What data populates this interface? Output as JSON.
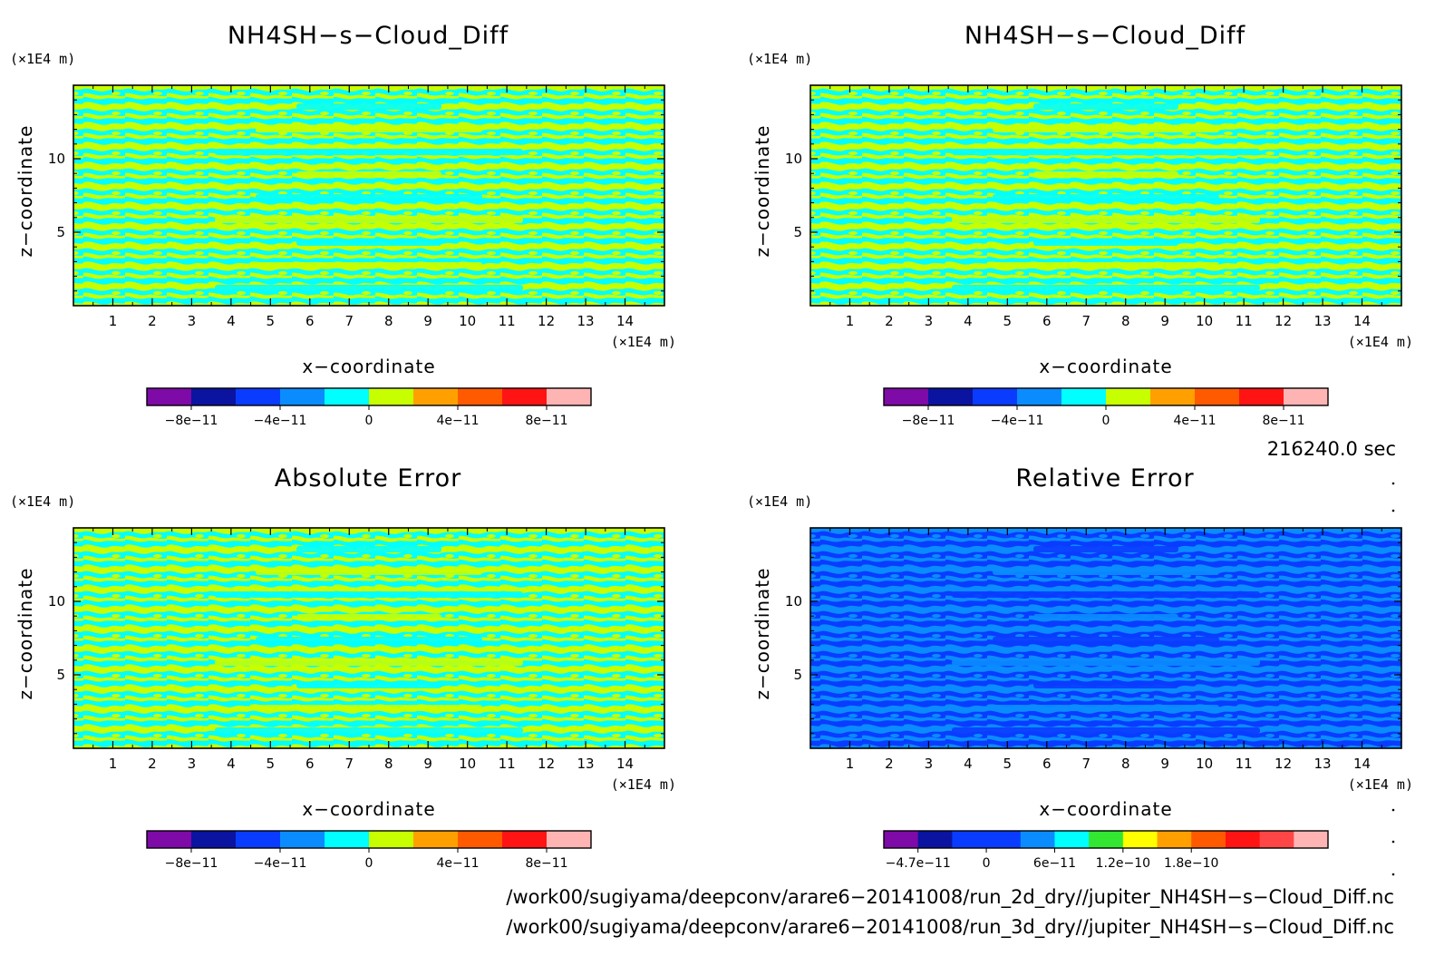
{
  "chart_data": [
    {
      "type": "heatmap",
      "title": "NH4SH−s−Cloud_Diff",
      "xlabel": "x−coordinate",
      "ylabel": "z−coordinate",
      "x_unit": "(×1E4 m)",
      "y_unit": "(×1E4 m)",
      "xlim": [
        0,
        15
      ],
      "ylim": [
        0,
        15
      ],
      "x_ticks": [
        "1",
        "2",
        "3",
        "4",
        "5",
        "6",
        "7",
        "8",
        "9",
        "10",
        "11",
        "12",
        "13",
        "14"
      ],
      "y_ticks": [
        "5",
        "10"
      ],
      "colorbar": {
        "colors": [
          "#7e0aa8",
          "#0a14a0",
          "#0a3cff",
          "#0a8cff",
          "#00ffff",
          "#c8ff00",
          "#ffa000",
          "#ff5a00",
          "#ff1414",
          "#ffb4b4"
        ],
        "labels": [
          "−8e−11",
          "−4e−11",
          "0",
          "4e−11",
          "8e−11"
        ]
      },
      "field_colors": [
        "#00ffff",
        "#c8ff00"
      ]
    },
    {
      "type": "heatmap",
      "title": "NH4SH−s−Cloud_Diff",
      "xlabel": "x−coordinate",
      "ylabel": "z−coordinate",
      "x_unit": "(×1E4 m)",
      "y_unit": "(×1E4 m)",
      "xlim": [
        0,
        15
      ],
      "ylim": [
        0,
        15
      ],
      "x_ticks": [
        "1",
        "2",
        "3",
        "4",
        "5",
        "6",
        "7",
        "8",
        "9",
        "10",
        "11",
        "12",
        "13",
        "14"
      ],
      "y_ticks": [
        "5",
        "10"
      ],
      "colorbar": {
        "colors": [
          "#7e0aa8",
          "#0a14a0",
          "#0a3cff",
          "#0a8cff",
          "#00ffff",
          "#c8ff00",
          "#ffa000",
          "#ff5a00",
          "#ff1414",
          "#ffb4b4"
        ],
        "labels": [
          "−8e−11",
          "−4e−11",
          "0",
          "4e−11",
          "8e−11"
        ]
      },
      "field_colors": [
        "#00ffff",
        "#c8ff00"
      ]
    },
    {
      "type": "heatmap",
      "title": "Absolute Error",
      "xlabel": "x−coordinate",
      "ylabel": "z−coordinate",
      "x_unit": "(×1E4 m)",
      "y_unit": "(×1E4 m)",
      "xlim": [
        0,
        15
      ],
      "ylim": [
        0,
        15
      ],
      "x_ticks": [
        "1",
        "2",
        "3",
        "4",
        "5",
        "6",
        "7",
        "8",
        "9",
        "10",
        "11",
        "12",
        "13",
        "14"
      ],
      "y_ticks": [
        "5",
        "10"
      ],
      "colorbar": {
        "colors": [
          "#7e0aa8",
          "#0a14a0",
          "#0a3cff",
          "#0a8cff",
          "#00ffff",
          "#c8ff00",
          "#ffa000",
          "#ff5a00",
          "#ff1414",
          "#ffb4b4"
        ],
        "labels": [
          "−8e−11",
          "−4e−11",
          "0",
          "4e−11",
          "8e−11"
        ]
      },
      "field_colors": [
        "#00ffff",
        "#c8ff00"
      ]
    },
    {
      "type": "heatmap",
      "title": "Relative Error",
      "xlabel": "x−coordinate",
      "ylabel": "z−coordinate",
      "x_unit": "(×1E4 m)",
      "y_unit": "(×1E4 m)",
      "xlim": [
        0,
        15
      ],
      "ylim": [
        0,
        15
      ],
      "x_ticks": [
        "1",
        "2",
        "3",
        "4",
        "5",
        "6",
        "7",
        "8",
        "9",
        "10",
        "11",
        "12",
        "13",
        "14"
      ],
      "y_ticks": [
        "5",
        "10"
      ],
      "colorbar": {
        "colors": [
          "#7e0aa8",
          "#0a14a0",
          "#0a3cff",
          "#0a3cff",
          "#0a8cff",
          "#00ffff",
          "#32e632",
          "#ffff00",
          "#ffa000",
          "#ff5a00",
          "#ff1414",
          "#ff4646",
          "#ffb4b4"
        ],
        "labels": [
          "−4.7e−11",
          "0",
          "6e−11",
          "1.2e−10",
          "1.8e−10"
        ]
      },
      "field_colors": [
        "#0a3cff",
        "#0a8cff"
      ]
    }
  ],
  "time_label": "216240.0 sec",
  "file_paths": [
    "/work00/sugiyama/deepconv/arare6−20141008/run_2d_dry//jupiter_NH4SH−s−Cloud_Diff.nc",
    "/work00/sugiyama/deepconv/arare6−20141008/run_3d_dry//jupiter_NH4SH−s−Cloud_Diff.nc"
  ]
}
